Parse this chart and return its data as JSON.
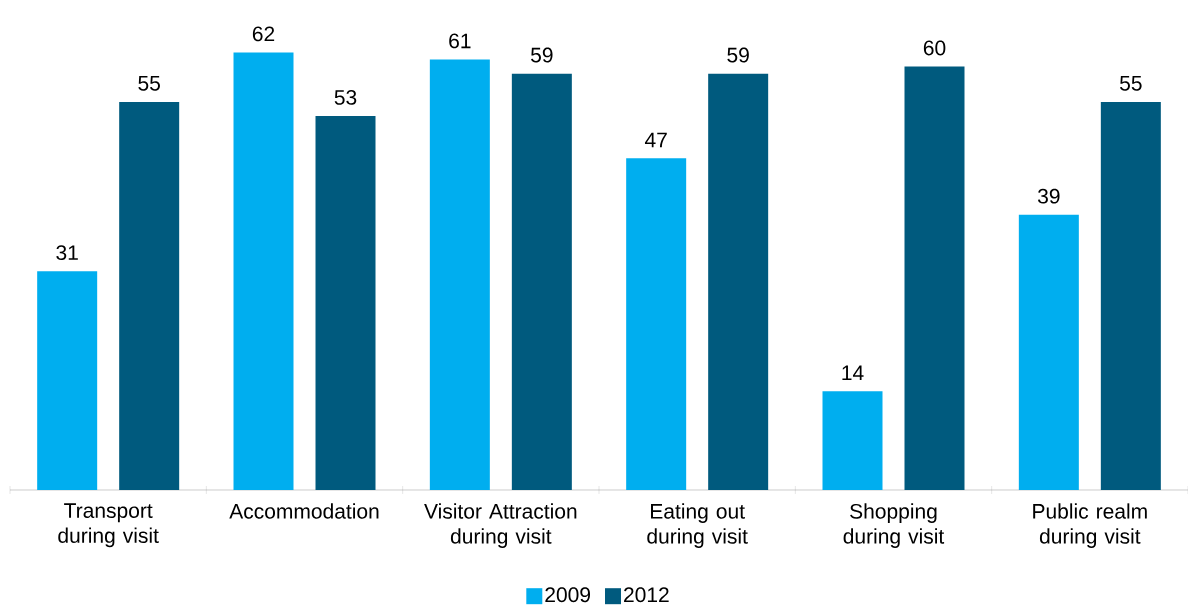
{
  "chart_data": {
    "type": "bar",
    "categories": [
      "Transport during visit",
      "Accommodation",
      "Visitor Attraction during visit",
      "Eating out during visit",
      "Shopping during visit",
      "Public realm during visit"
    ],
    "series": [
      {
        "name": "2009",
        "color": "#00aeef",
        "values": [
          31,
          62,
          61,
          47,
          14,
          39
        ]
      },
      {
        "name": "2012",
        "color": "#005a7e",
        "values": [
          55,
          53,
          59,
          59,
          60,
          55
        ]
      }
    ],
    "data_labels": true,
    "legend": "bottom"
  }
}
